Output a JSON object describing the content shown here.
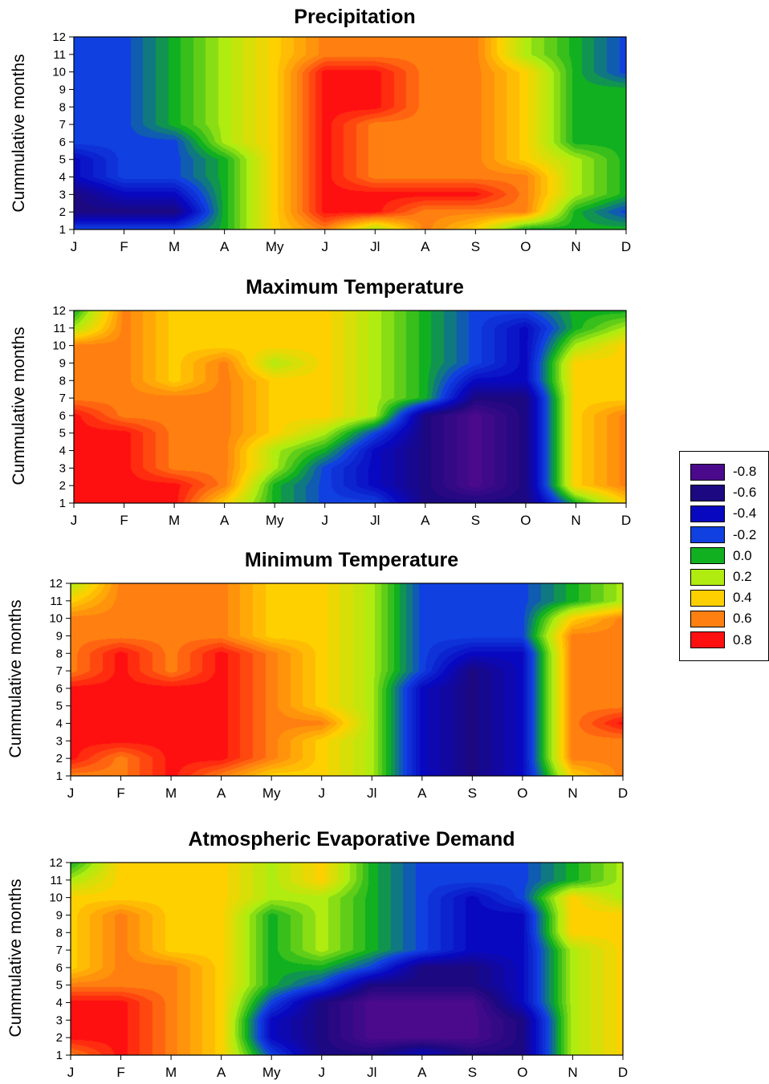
{
  "chart_data": [
    {
      "type": "heatmap",
      "title": "Precipitation",
      "ylabel": "Cummulative months",
      "xlabel": "",
      "x_categories": [
        "J",
        "F",
        "M",
        "A",
        "My",
        "J",
        "Jl",
        "A",
        "S",
        "O",
        "N",
        "D"
      ],
      "y_ticks": [
        1,
        2,
        3,
        4,
        5,
        6,
        7,
        8,
        9,
        10,
        11,
        12
      ],
      "z": [
        [
          -0.2,
          -0.2,
          -0.2,
          0.0,
          0.4,
          0.6,
          0.2,
          0.6,
          0.4,
          0.0,
          0.0,
          0.0
        ],
        [
          -0.6,
          -0.6,
          -0.6,
          0.0,
          0.4,
          0.8,
          0.8,
          0.6,
          0.6,
          0.6,
          0.0,
          -0.2
        ],
        [
          -0.6,
          -0.4,
          -0.4,
          0.0,
          0.4,
          0.8,
          0.8,
          0.8,
          0.8,
          0.6,
          0.2,
          0.0
        ],
        [
          -0.4,
          -0.2,
          -0.2,
          0.0,
          0.4,
          0.8,
          0.6,
          0.6,
          0.6,
          0.6,
          0.2,
          0.0
        ],
        [
          -0.4,
          -0.2,
          -0.2,
          0.0,
          0.4,
          0.8,
          0.6,
          0.6,
          0.6,
          0.4,
          0.2,
          0.0
        ],
        [
          -0.2,
          -0.2,
          -0.2,
          0.2,
          0.4,
          0.8,
          0.6,
          0.6,
          0.6,
          0.4,
          0.0,
          0.0
        ],
        [
          -0.2,
          -0.2,
          0.0,
          0.2,
          0.4,
          0.8,
          0.6,
          0.6,
          0.6,
          0.4,
          0.0,
          0.0
        ],
        [
          -0.2,
          -0.2,
          0.0,
          0.2,
          0.4,
          0.8,
          0.8,
          0.6,
          0.6,
          0.4,
          0.0,
          0.0
        ],
        [
          -0.2,
          -0.2,
          0.0,
          0.2,
          0.4,
          0.8,
          0.8,
          0.6,
          0.6,
          0.4,
          0.0,
          0.0
        ],
        [
          -0.2,
          -0.2,
          0.0,
          0.2,
          0.4,
          0.8,
          0.8,
          0.6,
          0.6,
          0.4,
          0.0,
          -0.2
        ],
        [
          -0.2,
          -0.2,
          0.0,
          0.2,
          0.4,
          0.6,
          0.6,
          0.6,
          0.6,
          0.2,
          0.0,
          -0.2
        ],
        [
          -0.2,
          -0.2,
          0.0,
          0.2,
          0.4,
          0.6,
          0.6,
          0.6,
          0.6,
          0.2,
          0.0,
          -0.2
        ]
      ]
    },
    {
      "type": "heatmap",
      "title": "Maximum Temperature",
      "ylabel": "Cummulative months",
      "xlabel": "",
      "x_categories": [
        "J",
        "F",
        "M",
        "A",
        "My",
        "J",
        "Jl",
        "A",
        "S",
        "O",
        "N",
        "D"
      ],
      "y_ticks": [
        1,
        2,
        3,
        4,
        5,
        6,
        7,
        8,
        9,
        10,
        11,
        12
      ],
      "z": [
        [
          0.8,
          0.8,
          0.8,
          0.4,
          0.0,
          -0.2,
          -0.2,
          -0.6,
          -0.6,
          -0.6,
          0.0,
          0.4
        ],
        [
          0.8,
          0.8,
          0.8,
          0.6,
          0.0,
          -0.2,
          -0.4,
          -0.6,
          -0.8,
          -0.6,
          0.4,
          0.6
        ],
        [
          0.8,
          0.8,
          0.6,
          0.6,
          0.2,
          -0.2,
          -0.4,
          -0.6,
          -0.8,
          -0.6,
          0.4,
          0.6
        ],
        [
          0.8,
          0.8,
          0.6,
          0.6,
          0.2,
          0.0,
          -0.4,
          -0.6,
          -0.8,
          -0.6,
          0.4,
          0.6
        ],
        [
          0.8,
          0.8,
          0.6,
          0.6,
          0.4,
          0.2,
          -0.2,
          -0.6,
          -0.8,
          -0.6,
          0.4,
          0.6
        ],
        [
          0.8,
          0.6,
          0.6,
          0.6,
          0.4,
          0.4,
          0.2,
          -0.6,
          -0.8,
          -0.6,
          0.4,
          0.6
        ],
        [
          0.6,
          0.6,
          0.6,
          0.6,
          0.4,
          0.4,
          0.2,
          0.0,
          -0.6,
          -0.6,
          0.4,
          0.4
        ],
        [
          0.6,
          0.6,
          0.4,
          0.6,
          0.4,
          0.4,
          0.2,
          0.0,
          -0.4,
          -0.4,
          0.4,
          0.4
        ],
        [
          0.6,
          0.6,
          0.4,
          0.6,
          0.2,
          0.4,
          0.2,
          0.0,
          -0.2,
          -0.4,
          0.4,
          0.4
        ],
        [
          0.6,
          0.6,
          0.4,
          0.4,
          0.4,
          0.4,
          0.2,
          0.0,
          -0.2,
          -0.4,
          0.2,
          0.4
        ],
        [
          0.2,
          0.6,
          0.4,
          0.4,
          0.4,
          0.4,
          0.2,
          0.0,
          -0.2,
          -0.4,
          0.0,
          0.2
        ],
        [
          0.0,
          0.6,
          0.4,
          0.4,
          0.4,
          0.4,
          0.2,
          0.0,
          -0.2,
          -0.2,
          0.0,
          0.0
        ]
      ]
    },
    {
      "type": "heatmap",
      "title": "Minimum Temperature",
      "ylabel": "Cummulative months",
      "xlabel": "",
      "x_categories": [
        "J",
        "F",
        "M",
        "A",
        "My",
        "J",
        "Jl",
        "A",
        "S",
        "O",
        "N",
        "D"
      ],
      "y_ticks": [
        1,
        2,
        3,
        4,
        5,
        6,
        7,
        8,
        9,
        10,
        11,
        12
      ],
      "z": [
        [
          0.6,
          0.6,
          0.8,
          0.6,
          0.4,
          0.4,
          0.2,
          -0.4,
          -0.6,
          -0.4,
          0.4,
          0.6
        ],
        [
          0.8,
          0.6,
          0.8,
          0.8,
          0.6,
          0.4,
          0.2,
          -0.4,
          -0.6,
          -0.4,
          0.6,
          0.6
        ],
        [
          0.8,
          0.8,
          0.8,
          0.8,
          0.6,
          0.4,
          0.2,
          -0.4,
          -0.6,
          -0.4,
          0.6,
          0.6
        ],
        [
          0.8,
          0.8,
          0.8,
          0.8,
          0.6,
          0.6,
          0.2,
          -0.4,
          -0.6,
          -0.4,
          0.6,
          0.8
        ],
        [
          0.8,
          0.8,
          0.8,
          0.8,
          0.6,
          0.4,
          0.2,
          -0.4,
          -0.6,
          -0.4,
          0.6,
          0.6
        ],
        [
          0.8,
          0.8,
          0.8,
          0.8,
          0.6,
          0.4,
          0.2,
          -0.4,
          -0.6,
          -0.4,
          0.6,
          0.6
        ],
        [
          0.6,
          0.8,
          0.6,
          0.8,
          0.6,
          0.4,
          0.2,
          -0.2,
          -0.6,
          -0.4,
          0.6,
          0.6
        ],
        [
          0.6,
          0.8,
          0.6,
          0.8,
          0.6,
          0.4,
          0.2,
          -0.2,
          -0.4,
          -0.4,
          0.6,
          0.6
        ],
        [
          0.6,
          0.6,
          0.6,
          0.6,
          0.4,
          0.4,
          0.2,
          -0.2,
          -0.2,
          -0.2,
          0.6,
          0.6
        ],
        [
          0.6,
          0.6,
          0.6,
          0.6,
          0.4,
          0.4,
          0.2,
          -0.2,
          -0.2,
          -0.2,
          0.4,
          0.6
        ],
        [
          0.4,
          0.6,
          0.6,
          0.6,
          0.4,
          0.4,
          0.2,
          -0.2,
          -0.2,
          -0.2,
          0.0,
          0.2
        ],
        [
          0.2,
          0.6,
          0.6,
          0.6,
          0.4,
          0.4,
          0.2,
          -0.2,
          -0.2,
          -0.2,
          0.0,
          0.2
        ]
      ]
    },
    {
      "type": "heatmap",
      "title": "Atmospheric Evaporative Demand",
      "ylabel": "Cummulative months",
      "xlabel": "",
      "x_categories": [
        "J",
        "F",
        "M",
        "A",
        "My",
        "J",
        "Jl",
        "A",
        "S",
        "O",
        "N",
        "D"
      ],
      "y_ticks": [
        1,
        2,
        3,
        4,
        5,
        6,
        7,
        8,
        9,
        10,
        11,
        12
      ],
      "z": [
        [
          0.6,
          0.8,
          0.6,
          0.4,
          -0.2,
          -0.6,
          -0.6,
          -0.4,
          -0.6,
          -0.6,
          0.2,
          0.4
        ],
        [
          0.8,
          0.8,
          0.6,
          0.4,
          -0.4,
          -0.6,
          -0.8,
          -0.8,
          -0.8,
          -0.6,
          0.2,
          0.4
        ],
        [
          0.8,
          0.8,
          0.6,
          0.4,
          -0.4,
          -0.6,
          -0.8,
          -0.8,
          -0.8,
          -0.6,
          0.2,
          0.4
        ],
        [
          0.8,
          0.8,
          0.6,
          0.4,
          -0.2,
          -0.6,
          -0.8,
          -0.8,
          -0.8,
          -0.4,
          0.2,
          0.4
        ],
        [
          0.6,
          0.6,
          0.6,
          0.4,
          0.0,
          -0.2,
          -0.6,
          -0.6,
          -0.6,
          -0.4,
          0.2,
          0.4
        ],
        [
          0.4,
          0.6,
          0.6,
          0.4,
          0.0,
          0.0,
          -0.2,
          -0.6,
          -0.6,
          -0.4,
          0.2,
          0.4
        ],
        [
          0.4,
          0.6,
          0.4,
          0.4,
          0.0,
          0.2,
          0.0,
          -0.2,
          -0.4,
          -0.4,
          0.2,
          0.4
        ],
        [
          0.4,
          0.6,
          0.4,
          0.4,
          0.0,
          0.2,
          0.0,
          -0.2,
          -0.4,
          -0.4,
          0.4,
          0.4
        ],
        [
          0.4,
          0.6,
          0.4,
          0.4,
          0.0,
          0.2,
          0.0,
          -0.2,
          -0.4,
          -0.4,
          0.4,
          0.4
        ],
        [
          0.4,
          0.4,
          0.4,
          0.4,
          0.2,
          0.2,
          0.0,
          -0.2,
          -0.4,
          -0.2,
          0.4,
          0.2
        ],
        [
          0.2,
          0.4,
          0.4,
          0.4,
          0.2,
          0.4,
          0.0,
          -0.2,
          -0.2,
          -0.2,
          0.0,
          0.2
        ],
        [
          0.0,
          0.4,
          0.4,
          0.4,
          0.2,
          0.4,
          0.0,
          -0.2,
          -0.2,
          -0.2,
          0.0,
          0.2
        ]
      ]
    }
  ],
  "legend": {
    "items": [
      {
        "label": "-0.8",
        "color": "#4b0a8c"
      },
      {
        "label": "-0.6",
        "color": "#1c0880"
      },
      {
        "label": "-0.4",
        "color": "#0808c0"
      },
      {
        "label": "-0.2",
        "color": "#1040e0"
      },
      {
        "label": "0.0",
        "color": "#10b020"
      },
      {
        "label": "0.2",
        "color": "#b0ec10"
      },
      {
        "label": "0.4",
        "color": "#ffd000"
      },
      {
        "label": "0.6",
        "color": "#ff8010"
      },
      {
        "label": "0.8",
        "color": "#ff1010"
      }
    ]
  }
}
